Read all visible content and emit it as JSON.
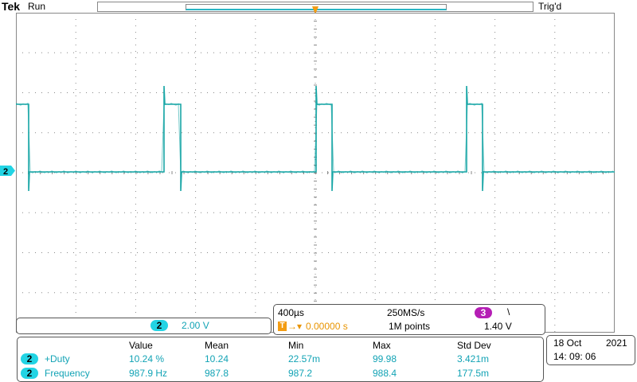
{
  "header": {
    "brand": "Tek",
    "run_status": "Run",
    "trigger_status": "Trig'd",
    "trigger_marker": "T"
  },
  "channel_marker": "2",
  "channel_panel": {
    "channel": "2",
    "scale": "2.00 V"
  },
  "time_panel": {
    "timebase": "400µs",
    "sample_rate": "250MS/s",
    "trigger_source": "3",
    "trigger_slope_symbol": "\\",
    "trigger_marker": "T",
    "trigger_delay": "0.00000 s",
    "record_length": "1M points",
    "trigger_level": "1.40 V"
  },
  "measurements": {
    "headers": [
      "Value",
      "Mean",
      "Min",
      "Max",
      "Std Dev"
    ],
    "rows": [
      {
        "channel": "2",
        "name": "+Duty",
        "value": "10.24 %",
        "mean": "10.24",
        "min": "22.57m",
        "max": "99.98",
        "std": "3.421m"
      },
      {
        "channel": "2",
        "name": "Frequency",
        "value": "987.9 Hz",
        "mean": "987.8",
        "min": "987.2",
        "max": "988.4",
        "std": "177.5m"
      }
    ]
  },
  "date_time": {
    "date": "18 Oct",
    "year": "2021",
    "time": "14: 09: 06"
  },
  "colors": {
    "trace": "#1aa7a7",
    "channel": "#22d4e4",
    "trigger": "#f39c12",
    "trigger_source": "#b51fb5"
  }
}
